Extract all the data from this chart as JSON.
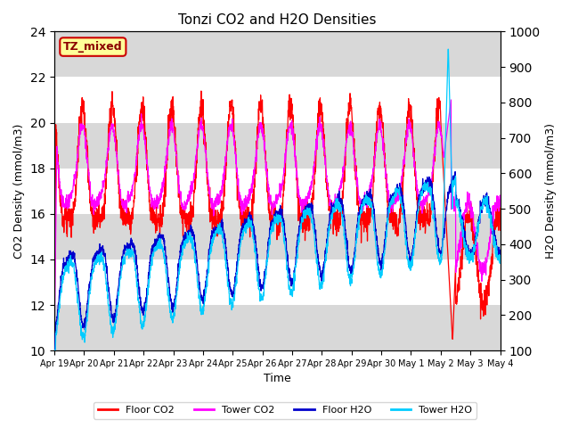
{
  "title": "Tonzi CO2 and H2O Densities",
  "xlabel": "Time",
  "ylabel_left": "CO2 Density (mmol/m3)",
  "ylabel_right": "H2O Density (mmol/m3)",
  "ylim_left": [
    10,
    24
  ],
  "ylim_right": [
    100,
    1000
  ],
  "yticks_left": [
    10,
    12,
    14,
    16,
    18,
    20,
    22,
    24
  ],
  "yticks_right": [
    100,
    200,
    300,
    400,
    500,
    600,
    700,
    800,
    900,
    1000
  ],
  "colors": {
    "floor_co2": "#ff0000",
    "tower_co2": "#ff00ff",
    "floor_h2o": "#0000cc",
    "tower_h2o": "#00ccff"
  },
  "legend_labels": [
    "Floor CO2",
    "Tower CO2",
    "Floor H2O",
    "Tower H2O"
  ],
  "annotation_text": "TZ_mixed",
  "annotation_bbox_facecolor": "#ffff99",
  "annotation_bbox_edgecolor": "#cc0000",
  "background_stripe_color": "#d8d8d8",
  "background_color": "#ffffff",
  "xtick_labels": [
    "Apr 19",
    "Apr 20",
    "Apr 21",
    "Apr 22",
    "Apr 23",
    "Apr 24",
    "Apr 25",
    "Apr 26",
    "Apr 27",
    "Apr 28",
    "Apr 29",
    "Apr 30",
    "May 1",
    "May 2",
    "May 3",
    "May 4"
  ],
  "n_points": 2160,
  "seed": 7
}
